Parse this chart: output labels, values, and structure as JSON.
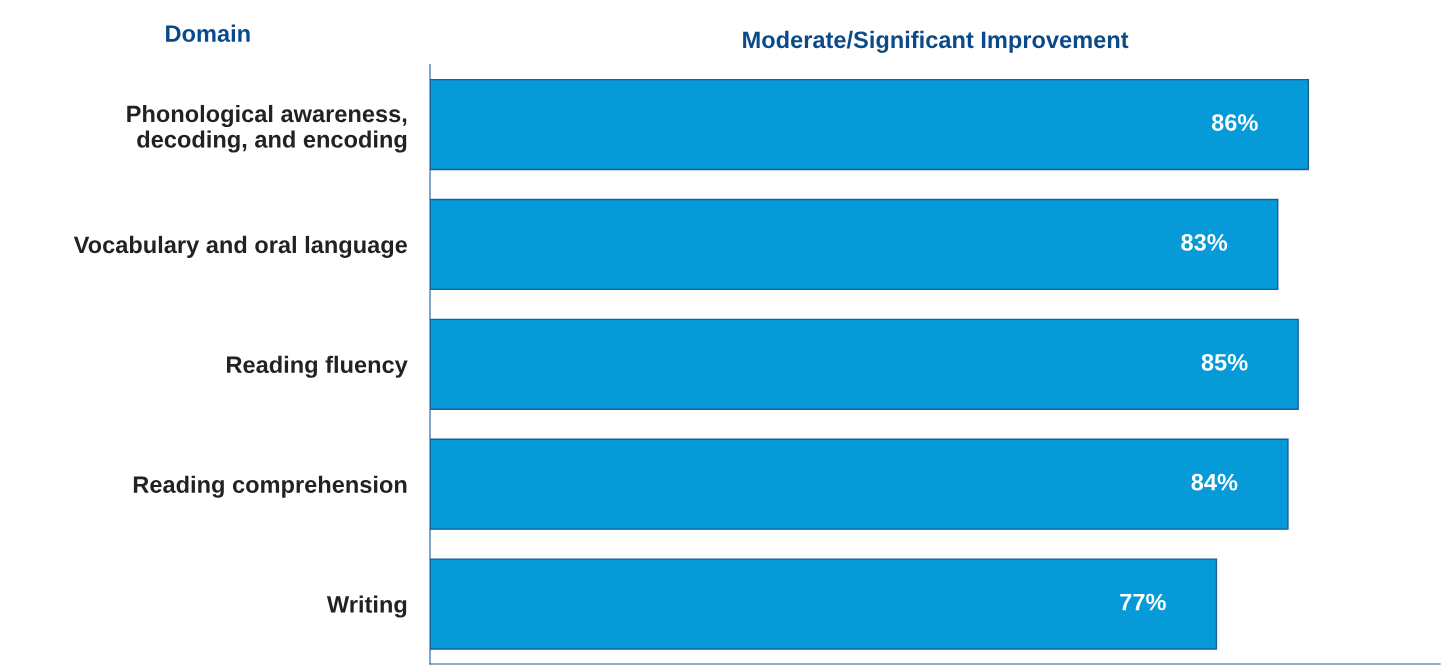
{
  "chart_data": {
    "type": "bar",
    "orientation": "horizontal",
    "title": "Moderate/Significant Improvement",
    "ylabel": "Domain",
    "categories": [
      "Phonological awareness,\ndecoding, and encoding",
      "Vocabulary and oral language",
      "Reading fluency",
      "Reading comprehension",
      "Writing"
    ],
    "values": [
      86,
      83,
      85,
      84,
      77
    ],
    "value_labels": [
      "86%",
      "83%",
      "85%",
      "84%",
      "77%"
    ],
    "color": "#069ad8",
    "tick_labels": "y"
  }
}
